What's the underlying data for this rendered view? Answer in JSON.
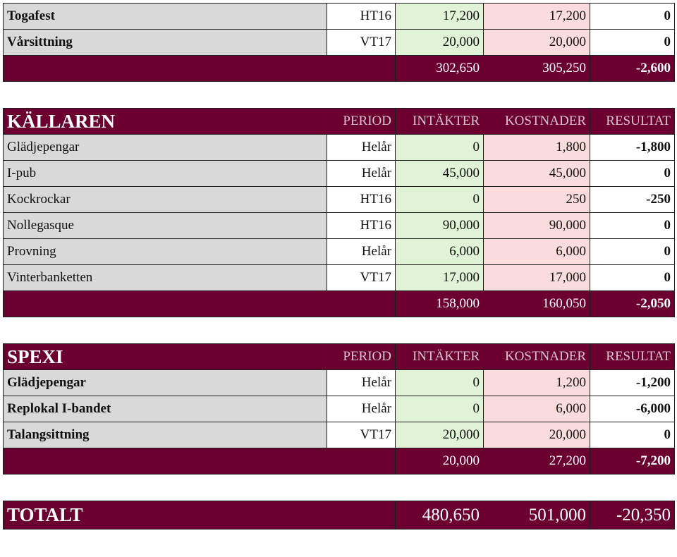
{
  "columns": {
    "period": "PERIOD",
    "income": "INTÄKTER",
    "expenses": "KOSTNADER",
    "result": "RESULTAT"
  },
  "top_block": {
    "rows": [
      {
        "name": "Togafest",
        "period": "HT16",
        "income": "17,200",
        "expenses": "17,200",
        "result": "0"
      },
      {
        "name": "Vårsittning",
        "period": "VT17",
        "income": "20,000",
        "expenses": "20,000",
        "result": "0"
      }
    ],
    "sum": {
      "income": "302,650",
      "expenses": "305,250",
      "result": "-2,600"
    }
  },
  "kallaren": {
    "title": "KÄLLAREN",
    "rows": [
      {
        "name": "Glädjepengar",
        "period": "Helår",
        "income": "0",
        "expenses": "1,800",
        "result": "-1,800"
      },
      {
        "name": "I-pub",
        "period": "Helår",
        "income": "45,000",
        "expenses": "45,000",
        "result": "0"
      },
      {
        "name": "Kockrockar",
        "period": "HT16",
        "income": "0",
        "expenses": "250",
        "result": "-250"
      },
      {
        "name": "Nollegasque",
        "period": "HT16",
        "income": "90,000",
        "expenses": "90,000",
        "result": "0"
      },
      {
        "name": "Provning",
        "period": "Helår",
        "income": "6,000",
        "expenses": "6,000",
        "result": "0"
      },
      {
        "name": "Vinterbanketten",
        "period": "VT17",
        "income": "17,000",
        "expenses": "17,000",
        "result": "0"
      }
    ],
    "sum": {
      "income": "158,000",
      "expenses": "160,050",
      "result": "-2,050"
    }
  },
  "spexi": {
    "title": "SPEXI",
    "rows": [
      {
        "name": "Glädjepengar",
        "period": "Helår",
        "income": "0",
        "expenses": "1,200",
        "result": "-1,200"
      },
      {
        "name": "Replokal I-bandet",
        "period": "Helår",
        "income": "0",
        "expenses": "6,000",
        "result": "-6,000"
      },
      {
        "name": "Talangsittning",
        "period": "VT17",
        "income": "20,000",
        "expenses": "20,000",
        "result": "0"
      }
    ],
    "sum": {
      "income": "20,000",
      "expenses": "27,200",
      "result": "-7,200"
    }
  },
  "total": {
    "title": "TOTALT",
    "income": "480,650",
    "expenses": "501,000",
    "result": "-20,350"
  },
  "colors": {
    "header_bg": "#6b0030",
    "name_bg": "#d9d9d9",
    "income_bg": "#e0f3d6",
    "expenses_bg": "#fadcdc"
  }
}
